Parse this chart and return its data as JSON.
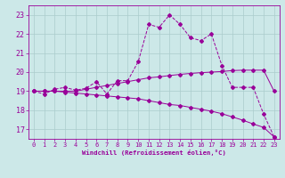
{
  "background_color": "#cce8e8",
  "grid_color": "#aacccc",
  "line_color": "#990099",
  "xlabel": "Windchill (Refroidissement éolien,°C)",
  "xlim": [
    -0.5,
    23.5
  ],
  "ylim": [
    16.5,
    23.5
  ],
  "yticks": [
    17,
    18,
    19,
    20,
    21,
    22,
    23
  ],
  "xticks": [
    0,
    1,
    2,
    3,
    4,
    5,
    6,
    7,
    8,
    9,
    10,
    11,
    12,
    13,
    14,
    15,
    16,
    17,
    18,
    19,
    20,
    21,
    22,
    23
  ],
  "line1_x": [
    0,
    1,
    2,
    3,
    4,
    5,
    6,
    7,
    8,
    9,
    10,
    11,
    12,
    13,
    14,
    15,
    16,
    17,
    18,
    19,
    20,
    21,
    22,
    23
  ],
  "line1_y": [
    19.0,
    18.85,
    19.1,
    19.2,
    19.05,
    19.15,
    19.5,
    18.85,
    19.55,
    19.55,
    20.55,
    22.5,
    22.35,
    23.0,
    22.5,
    21.8,
    21.65,
    22.0,
    20.35,
    19.2,
    19.2,
    19.2,
    17.8,
    16.6
  ],
  "line2_x": [
    0,
    1,
    2,
    3,
    4,
    5,
    6,
    7,
    8,
    9,
    10,
    11,
    12,
    13,
    14,
    15,
    16,
    17,
    18,
    19,
    20,
    21,
    22,
    23
  ],
  "line2_y": [
    19.0,
    19.0,
    19.0,
    19.0,
    19.0,
    19.1,
    19.2,
    19.3,
    19.4,
    19.5,
    19.6,
    19.7,
    19.75,
    19.82,
    19.88,
    19.93,
    19.97,
    20.0,
    20.03,
    20.08,
    20.1,
    20.1,
    20.1,
    19.0
  ],
  "line3_x": [
    0,
    1,
    2,
    3,
    4,
    5,
    6,
    7,
    8,
    9,
    10,
    11,
    12,
    13,
    14,
    15,
    16,
    17,
    18,
    19,
    20,
    21,
    22,
    23
  ],
  "line3_y": [
    19.0,
    19.0,
    19.0,
    18.95,
    18.9,
    18.85,
    18.8,
    18.75,
    18.7,
    18.65,
    18.6,
    18.5,
    18.4,
    18.3,
    18.25,
    18.15,
    18.05,
    17.95,
    17.82,
    17.65,
    17.48,
    17.28,
    17.1,
    16.6
  ]
}
